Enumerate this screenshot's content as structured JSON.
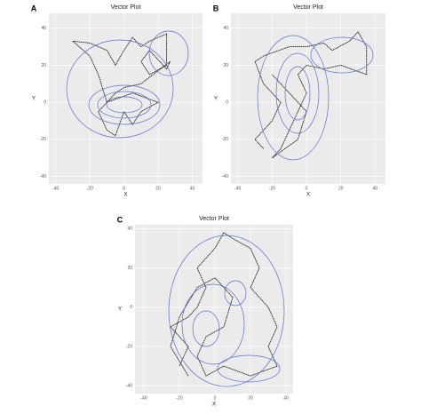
{
  "chart_data": [
    {
      "type": "path",
      "panel_label": "A",
      "title": "Vector Plot",
      "x_label": "X",
      "y_label": "Y",
      "xlim": [
        -44,
        46
      ],
      "ylim": [
        -44,
        48
      ],
      "xticks": [
        -40,
        -20,
        0,
        20,
        40
      ],
      "yticks": [
        -40,
        -20,
        0,
        20,
        40
      ],
      "grid": true,
      "series": [
        {
          "color": "#111111",
          "x": [
            -30,
            -20,
            -10,
            -5,
            0,
            5,
            10,
            15,
            25,
            25,
            15,
            10,
            15,
            25,
            27,
            10,
            0,
            -5,
            -15,
            -10,
            -5,
            0,
            5,
            10,
            20,
            5,
            -10,
            -15,
            -20,
            -30
          ],
          "y": [
            33,
            32,
            28,
            20,
            28,
            35,
            30,
            33,
            37,
            20,
            15,
            22,
            28,
            18,
            22,
            10,
            8,
            5,
            -5,
            -15,
            -18,
            -5,
            -12,
            -5,
            0,
            5,
            0,
            15,
            25,
            33
          ]
        }
      ]
    },
    {
      "type": "path",
      "panel_label": "B",
      "title": "Vector Plot",
      "x_label": "X",
      "y_label": "Y",
      "xlim": [
        -44,
        46
      ],
      "ylim": [
        -44,
        48
      ],
      "xticks": [
        -40,
        -20,
        0,
        20,
        40
      ],
      "yticks": [
        -40,
        -20,
        0,
        20,
        40
      ],
      "grid": true,
      "series": [
        {
          "color": "#111111",
          "x": [
            -25,
            -30,
            -20,
            -15,
            -25,
            -30,
            -25,
            -10,
            0,
            10,
            15,
            25,
            30,
            35,
            35,
            20,
            10,
            0,
            -5,
            0,
            -5,
            -10,
            -15,
            -20,
            -5,
            0,
            -10,
            -20
          ],
          "y": [
            -25,
            -20,
            -10,
            0,
            10,
            22,
            25,
            30,
            30,
            32,
            28,
            33,
            38,
            30,
            15,
            20,
            18,
            20,
            15,
            5,
            -5,
            -15,
            -25,
            -30,
            -20,
            -5,
            5,
            15
          ]
        }
      ]
    },
    {
      "type": "path",
      "panel_label": "C",
      "title": "Vector Plot",
      "x_label": "X",
      "y_label": "Y",
      "xlim": [
        -45,
        44
      ],
      "ylim": [
        -44,
        42
      ],
      "xticks": [
        -40,
        -20,
        0,
        20,
        40
      ],
      "yticks": [
        -40,
        -20,
        0,
        20,
        40
      ],
      "grid": true,
      "series": [
        {
          "color": "#111111",
          "x": [
            -20,
            -15,
            -25,
            -15,
            -10,
            -5,
            -10,
            0,
            5,
            10,
            20,
            25,
            20,
            30,
            35,
            30,
            35,
            20,
            5,
            -5,
            -10,
            -5,
            5,
            10,
            0,
            -10,
            -20,
            -25,
            -15
          ],
          "y": [
            -30,
            -20,
            -10,
            -5,
            0,
            10,
            20,
            30,
            38,
            35,
            30,
            20,
            10,
            0,
            -10,
            -20,
            -30,
            -35,
            -30,
            -35,
            -25,
            -15,
            -10,
            5,
            15,
            10,
            -5,
            -20,
            -35
          ]
        }
      ]
    }
  ]
}
